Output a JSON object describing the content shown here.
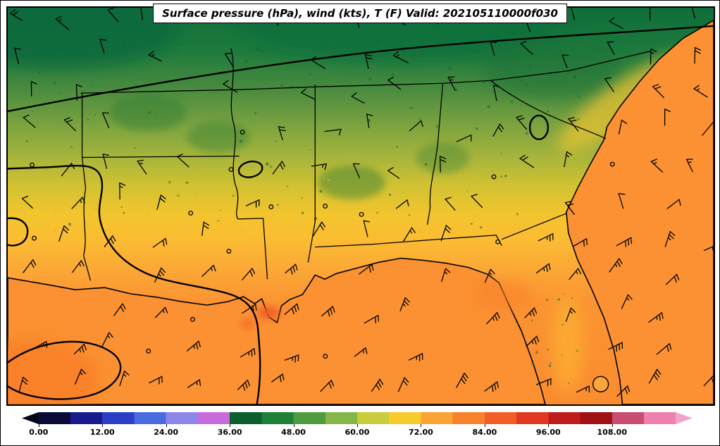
{
  "chart_data": {
    "type": "heatmap",
    "title": "Surface pressure (hPa), wind (kts), T (F) Valid: 202105110000f030",
    "field": "2-m temperature (F) filled contours",
    "overlays": [
      "surface pressure contours (hPa)",
      "wind barbs (kts)",
      "state borders and coastline"
    ],
    "region": "Southeastern United States and Gulf of Mexico",
    "colorbar": {
      "orientation": "horizontal",
      "units": "F",
      "range": [
        0,
        120
      ],
      "interval": 6,
      "tick_values": [
        0,
        12,
        24,
        36,
        48,
        60,
        72,
        84,
        96,
        108
      ],
      "tick_labels": [
        "0.00",
        "12.00",
        "24.00",
        "36.00",
        "48.00",
        "60.00",
        "72.00",
        "84.00",
        "96.00",
        "108.00"
      ],
      "under_color": "#05051a",
      "over_color": "#f2a3cd",
      "colors": [
        "#0b0b38",
        "#1a1a8f",
        "#2a3ec8",
        "#4a6ae0",
        "#8f86ea",
        "#c86adc",
        "#0b5e2d",
        "#1f8038",
        "#4f9c40",
        "#84b64a",
        "#c9cc3b",
        "#f7ca2d",
        "#fba433",
        "#f8822c",
        "#f25e28",
        "#e13822",
        "#bf1d1b",
        "#a11215",
        "#c94d72",
        "#ee7fae"
      ]
    },
    "map_palette": {
      "cold_land_north": "#0e6e3a",
      "mid_land_green": "#7da43f",
      "warm_land_yellow": "#f2c52e",
      "warm_water_orange": "#fb9132",
      "hot_spot_orange_red": "#ef5d26",
      "contour_line": "#000000"
    }
  }
}
